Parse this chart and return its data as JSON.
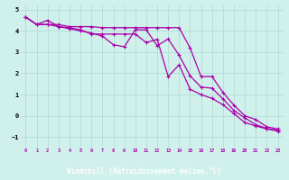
{
  "xlabel": "Windchill (Refroidissement éolien,°C)",
  "background_color": "#cff0eb",
  "grid_color": "#b0d8d4",
  "line_color": "#aa00aa",
  "xlabel_bg": "#7700aa",
  "x_ticks": [
    0,
    1,
    2,
    3,
    4,
    5,
    6,
    7,
    8,
    9,
    10,
    11,
    12,
    13,
    14,
    15,
    16,
    17,
    18,
    19,
    20,
    21,
    22,
    23
  ],
  "ylim": [
    -1.5,
    5.2
  ],
  "xlim": [
    -0.5,
    23.5
  ],
  "line1_x": [
    0,
    1,
    2,
    3,
    4,
    5,
    6,
    7,
    8,
    9,
    10,
    11,
    12,
    13,
    14,
    15,
    16,
    17,
    18,
    19,
    20,
    21,
    22,
    23
  ],
  "line1_y": [
    4.65,
    4.3,
    4.3,
    4.3,
    4.2,
    4.2,
    4.2,
    4.15,
    4.15,
    4.15,
    4.15,
    4.15,
    4.15,
    4.15,
    4.15,
    3.2,
    1.85,
    1.85,
    1.1,
    0.5,
    0.0,
    -0.18,
    -0.52,
    -0.62
  ],
  "line2_x": [
    0,
    1,
    2,
    3,
    4,
    5,
    6,
    7,
    8,
    9,
    10,
    11,
    12,
    13,
    14,
    15,
    16,
    17,
    18,
    19,
    20,
    21,
    22,
    23
  ],
  "line2_y": [
    4.65,
    4.3,
    4.3,
    4.2,
    4.1,
    4.0,
    3.9,
    3.75,
    3.35,
    3.25,
    4.05,
    4.05,
    3.3,
    3.62,
    2.85,
    1.88,
    1.35,
    1.3,
    0.8,
    0.25,
    -0.1,
    -0.42,
    -0.6,
    -0.68
  ],
  "line3_x": [
    0,
    1,
    2,
    3,
    4,
    5,
    6,
    7,
    8,
    9,
    10,
    11,
    12,
    13,
    14,
    15,
    16,
    17,
    18,
    19,
    20,
    21,
    22,
    23
  ],
  "line3_y": [
    4.65,
    4.3,
    4.5,
    4.2,
    4.15,
    4.05,
    3.85,
    3.85,
    3.85,
    3.85,
    3.85,
    3.45,
    3.6,
    1.85,
    2.4,
    1.25,
    1.0,
    0.82,
    0.52,
    0.1,
    -0.32,
    -0.48,
    -0.62,
    -0.72
  ]
}
